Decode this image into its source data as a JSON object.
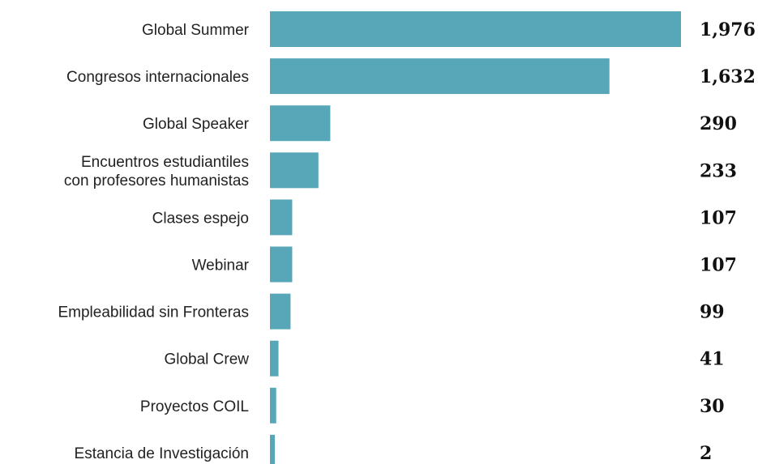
{
  "chart_data": {
    "type": "bar",
    "orientation": "horizontal",
    "categories": [
      [
        "Global Summer"
      ],
      [
        "Congresos internacionales"
      ],
      [
        "Global Speaker"
      ],
      [
        "Encuentros estudiantiles",
        "con profesores humanistas"
      ],
      [
        "Clases espejo"
      ],
      [
        "Webinar"
      ],
      [
        "Empleabilidad sin Fronteras"
      ],
      [
        "Global Crew"
      ],
      [
        "Proyectos COIL"
      ],
      [
        "Estancia de Investigación"
      ]
    ],
    "values": [
      1976,
      1632,
      290,
      233,
      107,
      107,
      99,
      41,
      30,
      2
    ],
    "value_labels": [
      "1,976",
      "1,632",
      "290",
      "233",
      "107",
      "107",
      "99",
      "41",
      "30",
      "2"
    ],
    "bar_color": "#58a7b8",
    "xlim": [
      0,
      1976
    ],
    "grid": false,
    "legend": "none"
  }
}
